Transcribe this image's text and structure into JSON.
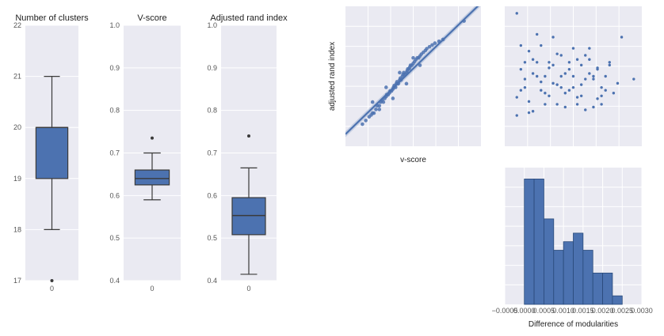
{
  "colors": {
    "panel_bg": "#eaeaf2",
    "grid": "#ffffff",
    "box_fill": "#4c72b0",
    "box_edge": "#3a3a3a",
    "point": "#4c72b0",
    "hist_edge": "#2a4a7a"
  },
  "chart_data": [
    {
      "type": "box",
      "title": "Number of clusters",
      "categories": [
        "0"
      ],
      "ylim": [
        17,
        22
      ],
      "yticks": [
        "17",
        "18",
        "19",
        "20",
        "21",
        "22"
      ],
      "stats": {
        "whislo": 18,
        "q1": 19,
        "median": 20,
        "q3": 20,
        "whishi": 21,
        "fliers": [
          17
        ]
      }
    },
    {
      "type": "box",
      "title": "V-score",
      "categories": [
        "0"
      ],
      "ylim": [
        0.4,
        1.0
      ],
      "yticks": [
        "0.4",
        "0.5",
        "0.6",
        "0.7",
        "0.8",
        "0.9",
        "1.0"
      ],
      "stats": {
        "whislo": 0.59,
        "q1": 0.625,
        "median": 0.64,
        "q3": 0.66,
        "whishi": 0.7,
        "fliers": [
          0.735
        ]
      }
    },
    {
      "type": "box",
      "title": "Adjusted rand index",
      "categories": [
        "0"
      ],
      "ylim": [
        0.4,
        1.0
      ],
      "yticks": [
        "0.4",
        "0.5",
        "0.6",
        "0.7",
        "0.8",
        "0.9",
        "1.0"
      ],
      "stats": {
        "whislo": 0.415,
        "q1": 0.508,
        "median": 0.553,
        "q3": 0.595,
        "whishi": 0.665,
        "fliers": [
          0.74
        ]
      }
    },
    {
      "type": "scatter",
      "title": "",
      "xlabel": "v-score",
      "ylabel": "adjusted rand index",
      "xlim": [
        0.56,
        0.76
      ],
      "ylim": [
        0.38,
        0.76
      ],
      "fit": {
        "slope": 1.78,
        "intercept": -0.584,
        "ci_half_width": 0.008
      },
      "x": [
        0.585,
        0.59,
        0.595,
        0.598,
        0.6,
        0.602,
        0.605,
        0.607,
        0.61,
        0.612,
        0.614,
        0.616,
        0.618,
        0.62,
        0.621,
        0.623,
        0.625,
        0.626,
        0.628,
        0.63,
        0.631,
        0.632,
        0.634,
        0.635,
        0.636,
        0.638,
        0.64,
        0.641,
        0.642,
        0.644,
        0.645,
        0.646,
        0.648,
        0.65,
        0.651,
        0.652,
        0.654,
        0.655,
        0.656,
        0.658,
        0.66,
        0.662,
        0.664,
        0.666,
        0.668,
        0.67,
        0.672,
        0.675,
        0.678,
        0.68,
        0.684,
        0.688,
        0.692,
        0.698,
        0.704,
        0.735,
        0.6,
        0.61,
        0.62,
        0.63,
        0.64,
        0.65,
        0.66,
        0.67
      ],
      "y": [
        0.44,
        0.45,
        0.46,
        0.465,
        0.47,
        0.47,
        0.48,
        0.49,
        0.49,
        0.5,
        0.505,
        0.5,
        0.51,
        0.515,
        0.52,
        0.52,
        0.525,
        0.53,
        0.53,
        0.535,
        0.54,
        0.545,
        0.54,
        0.55,
        0.555,
        0.55,
        0.56,
        0.565,
        0.56,
        0.57,
        0.575,
        0.58,
        0.575,
        0.58,
        0.585,
        0.59,
        0.59,
        0.595,
        0.6,
        0.6,
        0.605,
        0.61,
        0.615,
        0.62,
        0.62,
        0.625,
        0.63,
        0.635,
        0.64,
        0.645,
        0.65,
        0.655,
        0.66,
        0.665,
        0.67,
        0.72,
        0.5,
        0.48,
        0.54,
        0.51,
        0.58,
        0.55,
        0.62,
        0.6
      ]
    },
    {
      "type": "scatter",
      "title": "",
      "xlim": [
        -0.0003,
        0.0031
      ],
      "ylim": [
        0.0,
        1.0
      ],
      "x": [
        0.0,
        0.0001,
        0.0002,
        0.0003,
        0.0004,
        0.0005,
        0.0006,
        0.0007,
        0.0008,
        0.0009,
        0.001,
        0.0011,
        0.0012,
        0.0013,
        0.0014,
        0.0015,
        0.0016,
        0.0017,
        0.0018,
        0.0019,
        0.002,
        0.0021,
        0.0022,
        0.0023,
        0.0024,
        0.0025,
        0.0001,
        0.0003,
        0.0005,
        0.0007,
        0.0009,
        0.0011,
        0.0013,
        0.0015,
        0.0017,
        0.0019,
        0.0021,
        0.0023,
        0.0002,
        0.0004,
        0.0006,
        0.0008,
        0.001,
        0.0012,
        0.0014,
        0.0016,
        0.0018,
        0.002,
        0.0003,
        0.0006,
        0.0009,
        0.0012,
        0.0015,
        0.0018,
        0.0021,
        0.0,
        0.0002,
        0.0005,
        0.0008,
        0.0011,
        0.0014,
        0.0017,
        0.002,
        0.0004,
        0.0007,
        0.001,
        0.0013,
        0.0016,
        0.0019,
        0.0022,
        0.0026,
        0.0029,
        0.0,
        0.0001
      ],
      "y": [
        0.35,
        0.55,
        0.42,
        0.68,
        0.25,
        0.5,
        0.72,
        0.38,
        0.6,
        0.45,
        0.3,
        0.65,
        0.52,
        0.4,
        0.7,
        0.35,
        0.58,
        0.48,
        0.62,
        0.28,
        0.55,
        0.42,
        0.5,
        0.6,
        0.38,
        0.45,
        0.72,
        0.32,
        0.6,
        0.5,
        0.78,
        0.42,
        0.55,
        0.3,
        0.65,
        0.48,
        0.36,
        0.58,
        0.48,
        0.62,
        0.4,
        0.56,
        0.66,
        0.28,
        0.5,
        0.44,
        0.7,
        0.34,
        0.24,
        0.46,
        0.58,
        0.38,
        0.62,
        0.52,
        0.3,
        0.22,
        0.6,
        0.8,
        0.36,
        0.5,
        0.42,
        0.26,
        0.56,
        0.52,
        0.3,
        0.44,
        0.6,
        0.36,
        0.5,
        0.4,
        0.78,
        0.48,
        0.95,
        0.4
      ]
    },
    {
      "type": "bar",
      "title": "",
      "xlabel": "Difference of modularities",
      "xlim": [
        -0.0005,
        0.003
      ],
      "xticks": [
        "−0.0005",
        "0.0000",
        "0.0005",
        "0.0010",
        "0.0015",
        "0.0020",
        "0.0025",
        "0.0030"
      ],
      "bin_edges": [
        0.0,
        0.00025,
        0.0005,
        0.00075,
        0.001,
        0.00125,
        0.0015,
        0.00175,
        0.002,
        0.00225,
        0.0025
      ],
      "values": [
        44,
        44,
        30,
        19,
        22,
        25,
        19,
        11,
        11,
        3
      ]
    }
  ]
}
